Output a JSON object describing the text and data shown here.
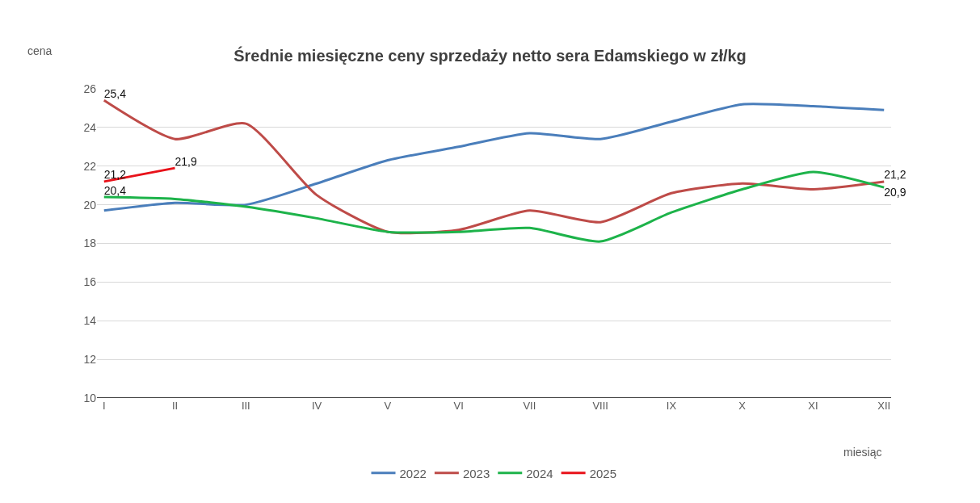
{
  "chart_data": {
    "type": "line",
    "title": "Średnie miesięczne ceny sprzedaży netto sera Edamskiego w zł/kg",
    "xlabel": "miesiąc",
    "ylabel": "cena",
    "categories": [
      "I",
      "II",
      "III",
      "IV",
      "V",
      "VI",
      "VII",
      "VIII",
      "IX",
      "X",
      "XI",
      "XII"
    ],
    "series": [
      {
        "name": "2022",
        "color": "#4a7ebb",
        "values": [
          19.7,
          20.1,
          20.0,
          21.1,
          22.3,
          23.0,
          23.7,
          23.4,
          24.3,
          25.2,
          25.1,
          24.9
        ]
      },
      {
        "name": "2023",
        "color": "#be4b48",
        "values": [
          25.4,
          23.4,
          24.2,
          20.5,
          18.6,
          18.7,
          19.7,
          19.1,
          20.6,
          21.1,
          20.8,
          21.2
        ],
        "value_labels": [
          "25,4",
          null,
          null,
          null,
          null,
          null,
          null,
          null,
          null,
          null,
          null,
          "21,2"
        ]
      },
      {
        "name": "2024",
        "color": "#1db34a",
        "values": [
          20.4,
          20.3,
          19.9,
          19.3,
          18.6,
          18.6,
          18.8,
          18.1,
          19.6,
          20.8,
          21.7,
          20.9
        ],
        "value_labels": [
          "20,4",
          null,
          null,
          null,
          null,
          null,
          null,
          null,
          null,
          null,
          null,
          "20,9"
        ]
      },
      {
        "name": "2025",
        "color": "#e8121a",
        "values": [
          21.2,
          21.9,
          null,
          null,
          null,
          null,
          null,
          null,
          null,
          null,
          null,
          null
        ],
        "value_labels": [
          "21,2",
          "21,9",
          null,
          null,
          null,
          null,
          null,
          null,
          null,
          null,
          null,
          null
        ]
      }
    ],
    "ylim": [
      10,
      26
    ],
    "yticks": [
      10,
      12,
      14,
      16,
      18,
      20,
      22,
      24,
      26
    ],
    "grid": "y",
    "legend": "bottom"
  }
}
